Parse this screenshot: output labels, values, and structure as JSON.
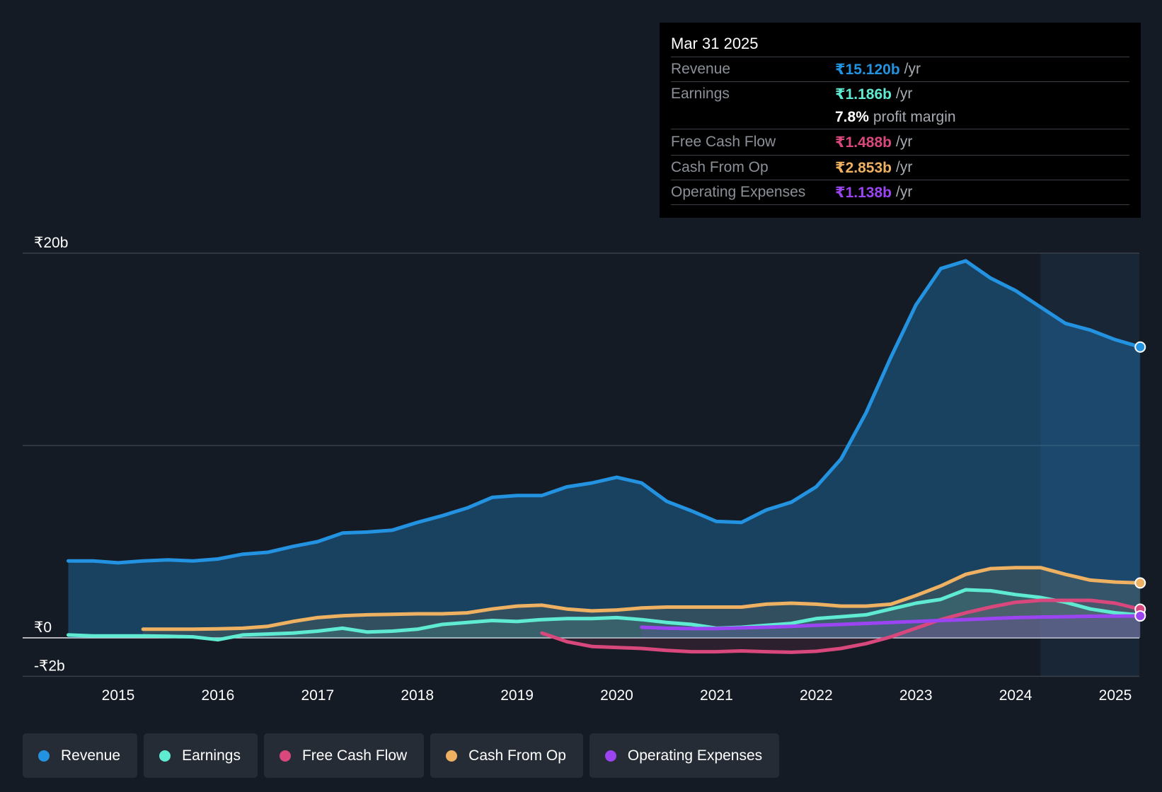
{
  "tooltip": {
    "date": "Mar 31 2025",
    "rows": [
      {
        "label": "Revenue",
        "value": "₹15.120b",
        "unit": "/yr",
        "color": "#2393e1"
      },
      {
        "label": "Earnings",
        "value": "₹1.186b",
        "unit": "/yr",
        "color": "#5eebd2"
      },
      {
        "label": "",
        "value": "7.8%",
        "unit": "profit margin",
        "color": "#ffffff"
      },
      {
        "label": "Free Cash Flow",
        "value": "₹1.488b",
        "unit": "/yr",
        "color": "#d8487c"
      },
      {
        "label": "Cash From Op",
        "value": "₹2.853b",
        "unit": "/yr",
        "color": "#eeb162"
      },
      {
        "label": "Operating Expenses",
        "value": "₹1.138b",
        "unit": "/yr",
        "color": "#9b44f2"
      }
    ]
  },
  "legend": [
    {
      "label": "Revenue",
      "color": "#2393e1"
    },
    {
      "label": "Earnings",
      "color": "#5eebd2"
    },
    {
      "label": "Free Cash Flow",
      "color": "#d8487c"
    },
    {
      "label": "Cash From Op",
      "color": "#eeb162"
    },
    {
      "label": "Operating Expenses",
      "color": "#9b44f2"
    }
  ],
  "chart_data": {
    "type": "area",
    "title": "",
    "currency": "₹",
    "unit": "b",
    "ylim": [
      -2,
      20
    ],
    "xlim": [
      2014.0,
      2025.25
    ],
    "y_tick_labels": [
      {
        "value": 20,
        "label": "₹20b"
      },
      {
        "value": 0,
        "label": "₹0"
      },
      {
        "value": -2,
        "label": "-₹2b"
      }
    ],
    "x_ticks": [
      2015,
      2016,
      2017,
      2018,
      2019,
      2020,
      2021,
      2022,
      2023,
      2024,
      2025
    ],
    "forecast_start": 2024.25,
    "series": [
      {
        "name": "Revenue",
        "color": "#2393e1",
        "points": [
          [
            2014.5,
            4.0
          ],
          [
            2014.75,
            4.0
          ],
          [
            2015.0,
            3.9
          ],
          [
            2015.25,
            4.0
          ],
          [
            2015.5,
            4.05
          ],
          [
            2015.75,
            4.0
          ],
          [
            2016.0,
            4.1
          ],
          [
            2016.25,
            4.35
          ],
          [
            2016.5,
            4.45
          ],
          [
            2016.75,
            4.75
          ],
          [
            2017.0,
            5.0
          ],
          [
            2017.25,
            5.45
          ],
          [
            2017.5,
            5.5
          ],
          [
            2017.75,
            5.6
          ],
          [
            2018.0,
            6.0
          ],
          [
            2018.25,
            6.35
          ],
          [
            2018.5,
            6.75
          ],
          [
            2018.75,
            7.3
          ],
          [
            2019.0,
            7.4
          ],
          [
            2019.25,
            7.4
          ],
          [
            2019.5,
            7.85
          ],
          [
            2019.75,
            8.05
          ],
          [
            2020.0,
            8.35
          ],
          [
            2020.25,
            8.05
          ],
          [
            2020.5,
            7.1
          ],
          [
            2020.75,
            6.6
          ],
          [
            2021.0,
            6.05
          ],
          [
            2021.25,
            6.0
          ],
          [
            2021.5,
            6.65
          ],
          [
            2021.75,
            7.05
          ],
          [
            2022.0,
            7.85
          ],
          [
            2022.25,
            9.3
          ],
          [
            2022.5,
            11.7
          ],
          [
            2022.75,
            14.6
          ],
          [
            2023.0,
            17.3
          ],
          [
            2023.25,
            19.2
          ],
          [
            2023.5,
            19.6
          ],
          [
            2023.75,
            18.7
          ],
          [
            2024.0,
            18.05
          ],
          [
            2024.25,
            17.2
          ],
          [
            2024.5,
            16.35
          ],
          [
            2024.75,
            16.0
          ],
          [
            2025.0,
            15.5
          ],
          [
            2025.25,
            15.12
          ]
        ]
      },
      {
        "name": "Earnings",
        "color": "#5eebd2",
        "points": [
          [
            2014.5,
            0.15
          ],
          [
            2014.75,
            0.1
          ],
          [
            2015.0,
            0.1
          ],
          [
            2015.25,
            0.1
          ],
          [
            2015.5,
            0.08
          ],
          [
            2015.75,
            0.05
          ],
          [
            2016.0,
            -0.1
          ],
          [
            2016.25,
            0.15
          ],
          [
            2016.5,
            0.2
          ],
          [
            2016.75,
            0.25
          ],
          [
            2017.0,
            0.35
          ],
          [
            2017.25,
            0.5
          ],
          [
            2017.5,
            0.3
          ],
          [
            2017.75,
            0.35
          ],
          [
            2018.0,
            0.45
          ],
          [
            2018.25,
            0.7
          ],
          [
            2018.5,
            0.8
          ],
          [
            2018.75,
            0.9
          ],
          [
            2019.0,
            0.85
          ],
          [
            2019.25,
            0.95
          ],
          [
            2019.5,
            1.0
          ],
          [
            2019.75,
            1.0
          ],
          [
            2020.0,
            1.05
          ],
          [
            2020.25,
            0.95
          ],
          [
            2020.5,
            0.8
          ],
          [
            2020.75,
            0.7
          ],
          [
            2021.0,
            0.5
          ],
          [
            2021.25,
            0.55
          ],
          [
            2021.5,
            0.65
          ],
          [
            2021.75,
            0.75
          ],
          [
            2022.0,
            1.0
          ],
          [
            2022.25,
            1.1
          ],
          [
            2022.5,
            1.2
          ],
          [
            2022.75,
            1.5
          ],
          [
            2023.0,
            1.8
          ],
          [
            2023.25,
            2.0
          ],
          [
            2023.5,
            2.5
          ],
          [
            2023.75,
            2.45
          ],
          [
            2024.0,
            2.25
          ],
          [
            2024.25,
            2.1
          ],
          [
            2024.5,
            1.85
          ],
          [
            2024.75,
            1.5
          ],
          [
            2025.0,
            1.3
          ],
          [
            2025.25,
            1.186
          ]
        ]
      },
      {
        "name": "Free Cash Flow",
        "color": "#d8487c",
        "points": [
          [
            2019.25,
            0.25
          ],
          [
            2019.5,
            -0.2
          ],
          [
            2019.75,
            -0.45
          ],
          [
            2020.0,
            -0.5
          ],
          [
            2020.25,
            -0.55
          ],
          [
            2020.5,
            -0.65
          ],
          [
            2020.75,
            -0.72
          ],
          [
            2021.0,
            -0.72
          ],
          [
            2021.25,
            -0.68
          ],
          [
            2021.5,
            -0.72
          ],
          [
            2021.75,
            -0.75
          ],
          [
            2022.0,
            -0.7
          ],
          [
            2022.25,
            -0.55
          ],
          [
            2022.5,
            -0.3
          ],
          [
            2022.75,
            0.05
          ],
          [
            2023.0,
            0.5
          ],
          [
            2023.25,
            0.95
          ],
          [
            2023.5,
            1.3
          ],
          [
            2023.75,
            1.6
          ],
          [
            2024.0,
            1.85
          ],
          [
            2024.25,
            1.95
          ],
          [
            2024.5,
            1.95
          ],
          [
            2024.75,
            1.95
          ],
          [
            2025.0,
            1.8
          ],
          [
            2025.25,
            1.488
          ]
        ]
      },
      {
        "name": "Cash From Op",
        "color": "#eeb162",
        "points": [
          [
            2015.25,
            0.45
          ],
          [
            2015.5,
            0.45
          ],
          [
            2015.75,
            0.45
          ],
          [
            2016.0,
            0.47
          ],
          [
            2016.25,
            0.5
          ],
          [
            2016.5,
            0.6
          ],
          [
            2016.75,
            0.85
          ],
          [
            2017.0,
            1.05
          ],
          [
            2017.25,
            1.15
          ],
          [
            2017.5,
            1.2
          ],
          [
            2017.75,
            1.22
          ],
          [
            2018.0,
            1.25
          ],
          [
            2018.25,
            1.25
          ],
          [
            2018.5,
            1.3
          ],
          [
            2018.75,
            1.5
          ],
          [
            2019.0,
            1.65
          ],
          [
            2019.25,
            1.7
          ],
          [
            2019.5,
            1.5
          ],
          [
            2019.75,
            1.4
          ],
          [
            2020.0,
            1.45
          ],
          [
            2020.25,
            1.55
          ],
          [
            2020.5,
            1.6
          ],
          [
            2020.75,
            1.6
          ],
          [
            2021.0,
            1.6
          ],
          [
            2021.25,
            1.6
          ],
          [
            2021.5,
            1.75
          ],
          [
            2021.75,
            1.8
          ],
          [
            2022.0,
            1.75
          ],
          [
            2022.25,
            1.65
          ],
          [
            2022.5,
            1.65
          ],
          [
            2022.75,
            1.75
          ],
          [
            2023.0,
            2.2
          ],
          [
            2023.25,
            2.7
          ],
          [
            2023.5,
            3.3
          ],
          [
            2023.75,
            3.6
          ],
          [
            2024.0,
            3.65
          ],
          [
            2024.25,
            3.65
          ],
          [
            2024.5,
            3.3
          ],
          [
            2024.75,
            3.0
          ],
          [
            2025.0,
            2.9
          ],
          [
            2025.25,
            2.853
          ]
        ]
      },
      {
        "name": "Operating Expenses",
        "color": "#9b44f2",
        "points": [
          [
            2020.25,
            0.55
          ],
          [
            2020.5,
            0.5
          ],
          [
            2020.75,
            0.48
          ],
          [
            2021.0,
            0.48
          ],
          [
            2021.25,
            0.52
          ],
          [
            2021.5,
            0.55
          ],
          [
            2021.75,
            0.6
          ],
          [
            2022.0,
            0.65
          ],
          [
            2022.25,
            0.7
          ],
          [
            2022.5,
            0.75
          ],
          [
            2022.75,
            0.8
          ],
          [
            2023.0,
            0.85
          ],
          [
            2023.25,
            0.9
          ],
          [
            2023.5,
            0.95
          ],
          [
            2023.75,
            1.0
          ],
          [
            2024.0,
            1.05
          ],
          [
            2024.25,
            1.08
          ],
          [
            2024.5,
            1.1
          ],
          [
            2024.75,
            1.12
          ],
          [
            2025.0,
            1.13
          ],
          [
            2025.25,
            1.138
          ]
        ]
      }
    ]
  }
}
